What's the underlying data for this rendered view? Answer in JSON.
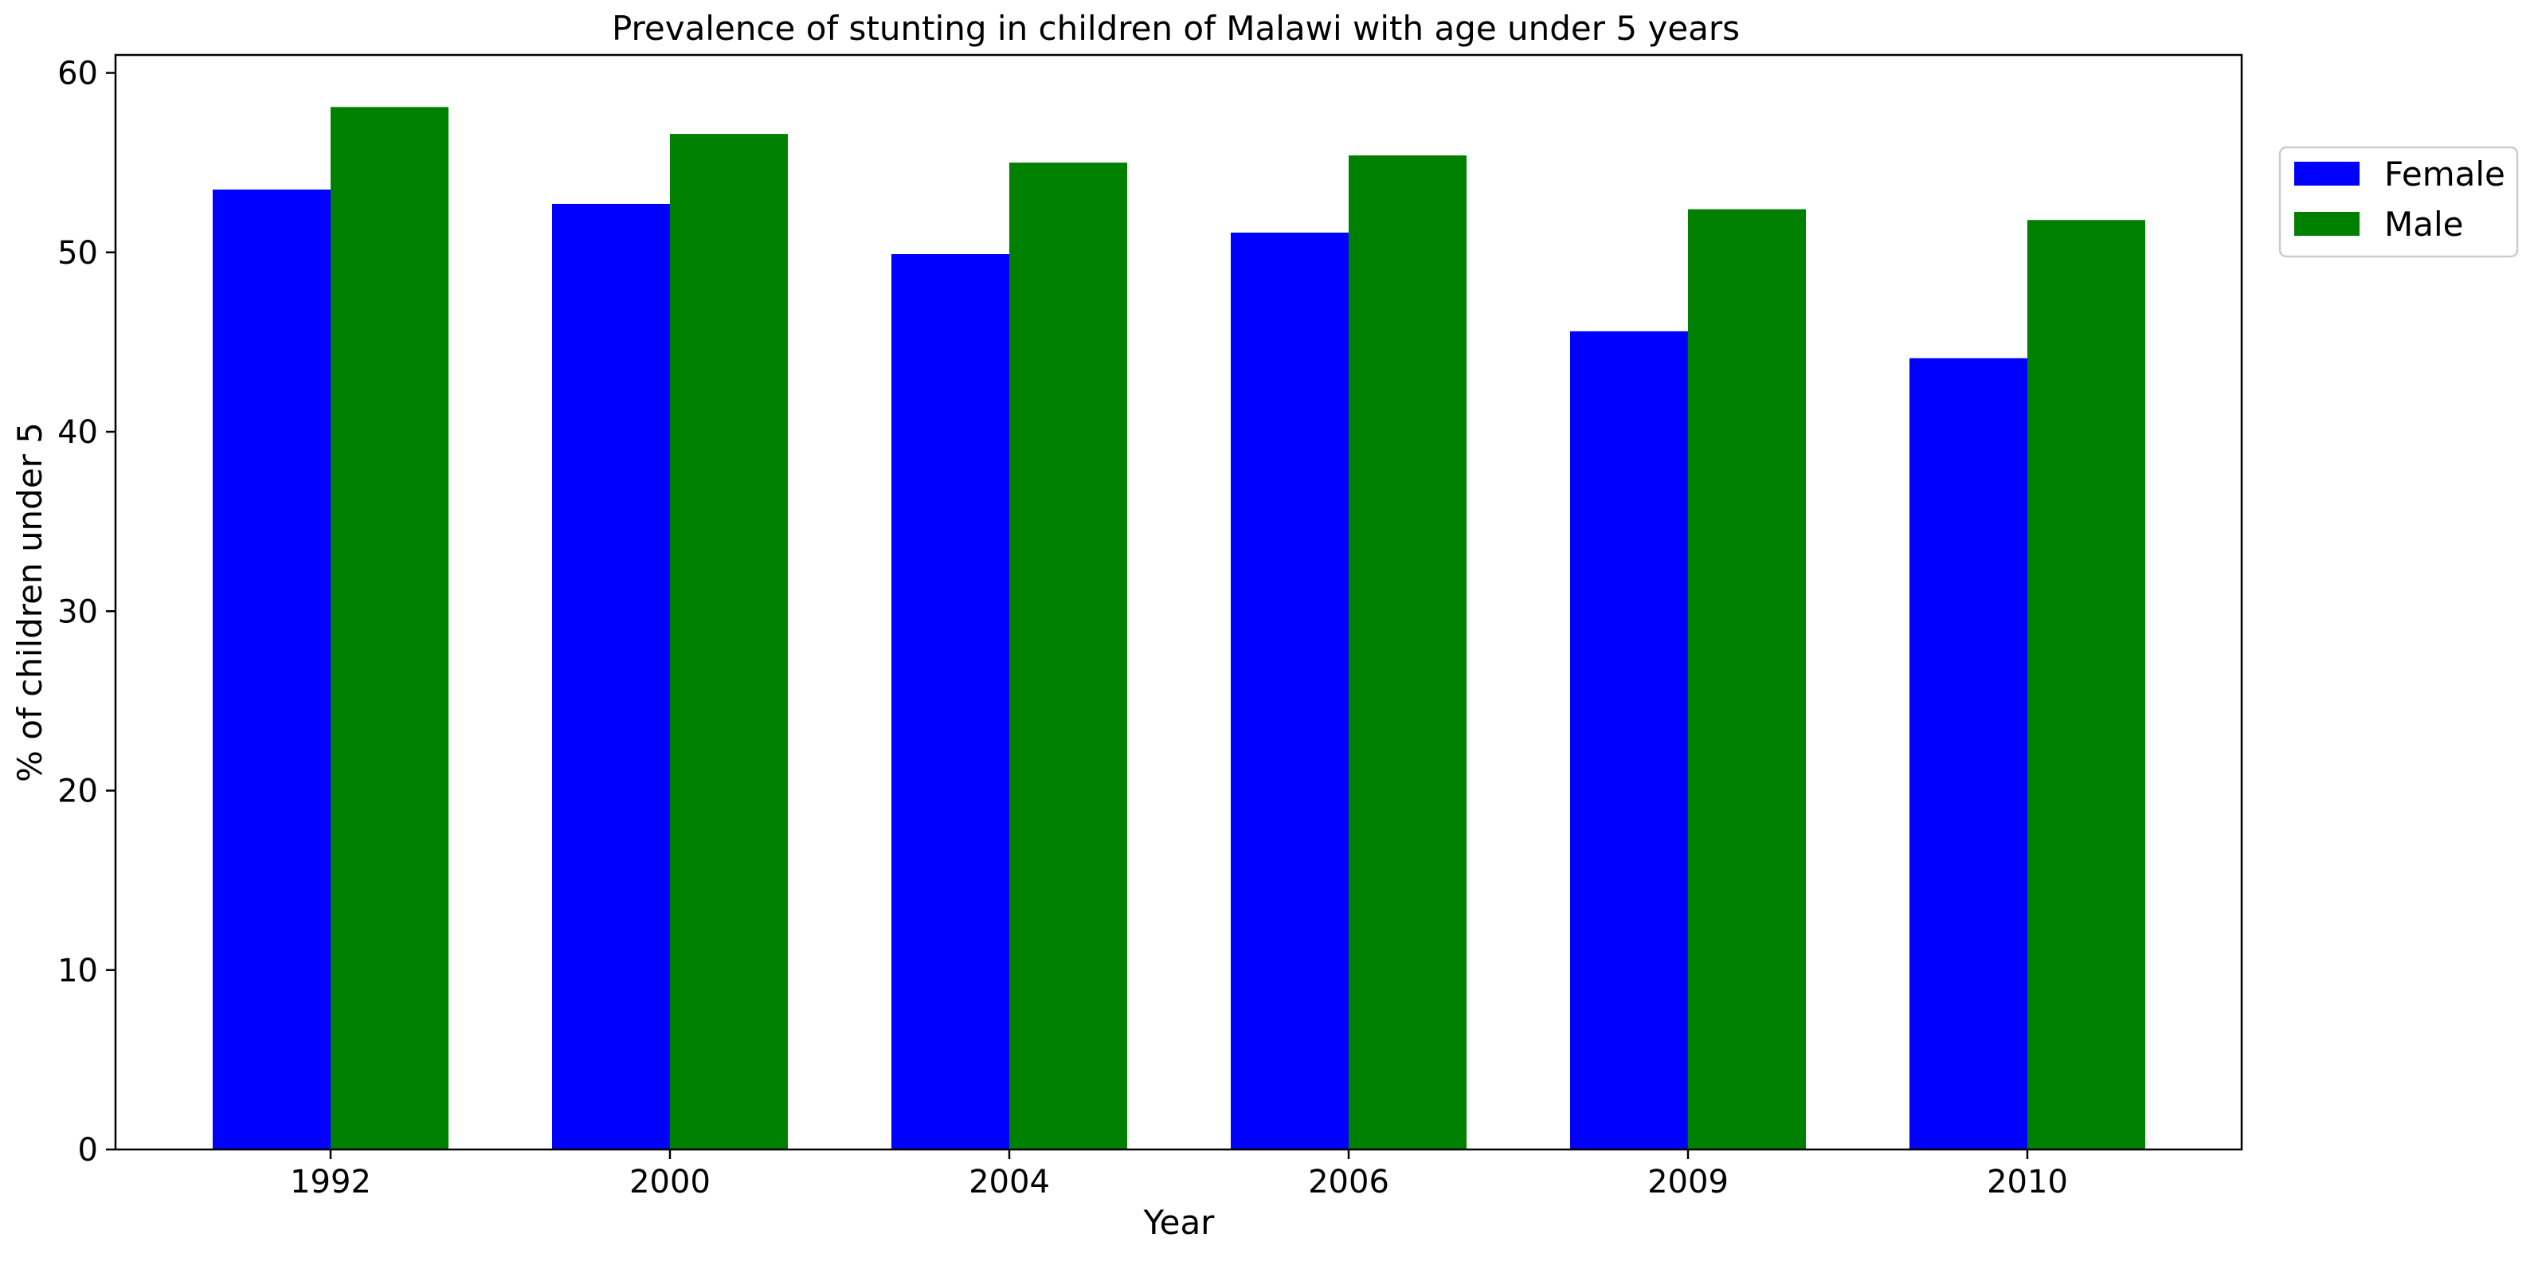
{
  "chart_data": {
    "type": "bar",
    "title": "Prevalence of stunting in children of Malawi with age under 5 years",
    "xlabel": "Year",
    "ylabel": "% of children under 5",
    "categories": [
      "1992",
      "2000",
      "2004",
      "2006",
      "2009",
      "2010"
    ],
    "series": [
      {
        "name": "Female",
        "color": "#0000ff",
        "values": [
          53.5,
          52.7,
          49.9,
          51.1,
          45.6,
          44.1
        ]
      },
      {
        "name": "Male",
        "color": "#008000",
        "values": [
          58.1,
          56.6,
          55.0,
          55.4,
          52.4,
          51.8
        ]
      }
    ],
    "ylim": [
      0,
      61
    ],
    "yticks": [
      "0",
      "10",
      "20",
      "30",
      "40",
      "50",
      "60"
    ],
    "grid": false,
    "legend_position": "upper-right-outside"
  }
}
